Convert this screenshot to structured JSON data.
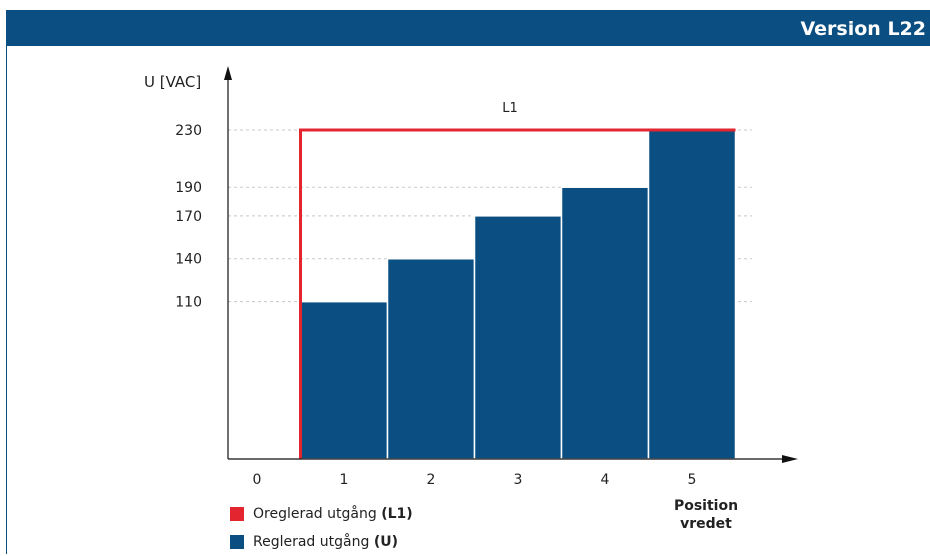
{
  "header": {
    "title": "Version L22",
    "color": "#0b4f82"
  },
  "chart_data": {
    "type": "bar",
    "ylabel": "U [VAC]",
    "xlabel": "Position\nvredet",
    "x_ticks": [
      "0",
      "1",
      "2",
      "3",
      "4",
      "5"
    ],
    "y_ticks": [
      110,
      140,
      170,
      190,
      230
    ],
    "ylim": [
      0,
      255
    ],
    "grid": "dotted horizontal lines at labelled ticks",
    "categories": [
      "1",
      "2",
      "3",
      "4",
      "5"
    ],
    "series": [
      {
        "name": "Reglerad utgång (U)",
        "color": "#0b4f82",
        "values": [
          110,
          140,
          170,
          190,
          230
        ]
      },
      {
        "name": "Oreglerad utgång (L1)",
        "color": "#e32530",
        "type": "step-line",
        "x": [
          0.5,
          0.5,
          5.5
        ],
        "y": [
          0,
          230,
          230
        ]
      }
    ],
    "annotations": [
      {
        "text": "L1",
        "x": 3,
        "y": 246
      }
    ]
  },
  "legend": {
    "items": [
      {
        "label": "Oreglerad utgång ",
        "bold": "(L1)",
        "color": "#e32530"
      },
      {
        "label": "Reglerad utgång ",
        "bold": "(U)",
        "color": "#0b4f82"
      }
    ]
  }
}
